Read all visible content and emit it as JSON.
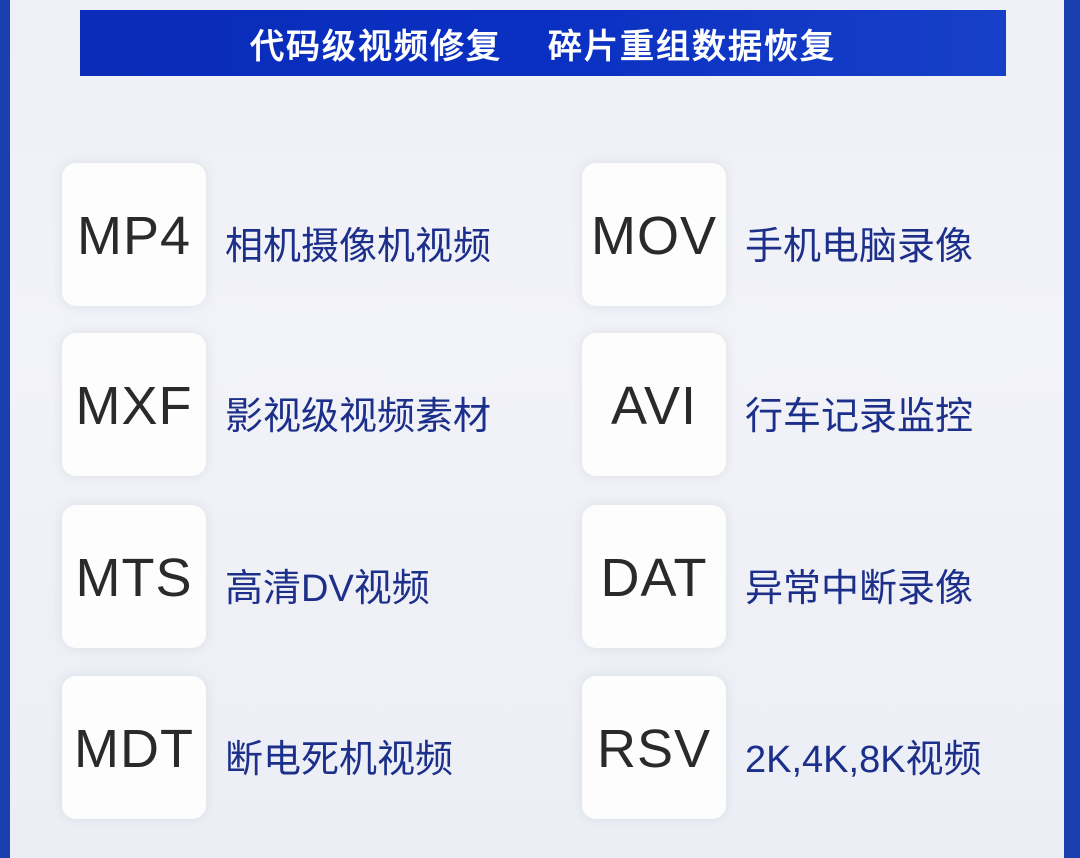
{
  "banner": {
    "left": "代码级视频修复",
    "right": "碎片重组数据恢复"
  },
  "formats": [
    {
      "code": "MP4",
      "desc": "相机摄像机视频"
    },
    {
      "code": "MOV",
      "desc": "手机电脑录像"
    },
    {
      "code": "MXF",
      "desc": "影视级视频素材"
    },
    {
      "code": "AVI",
      "desc": "行车记录监控"
    },
    {
      "code": "MTS",
      "desc": "高清DV视频"
    },
    {
      "code": "DAT",
      "desc": "异常中断录像"
    },
    {
      "code": "MDT",
      "desc": "断电死机视频"
    },
    {
      "code": "RSV",
      "desc": "2K,4K,8K视频"
    }
  ],
  "colors": {
    "banner": "#0b2bb8",
    "desc_text": "#1c2f8a",
    "code_text": "#2a2a2a"
  }
}
